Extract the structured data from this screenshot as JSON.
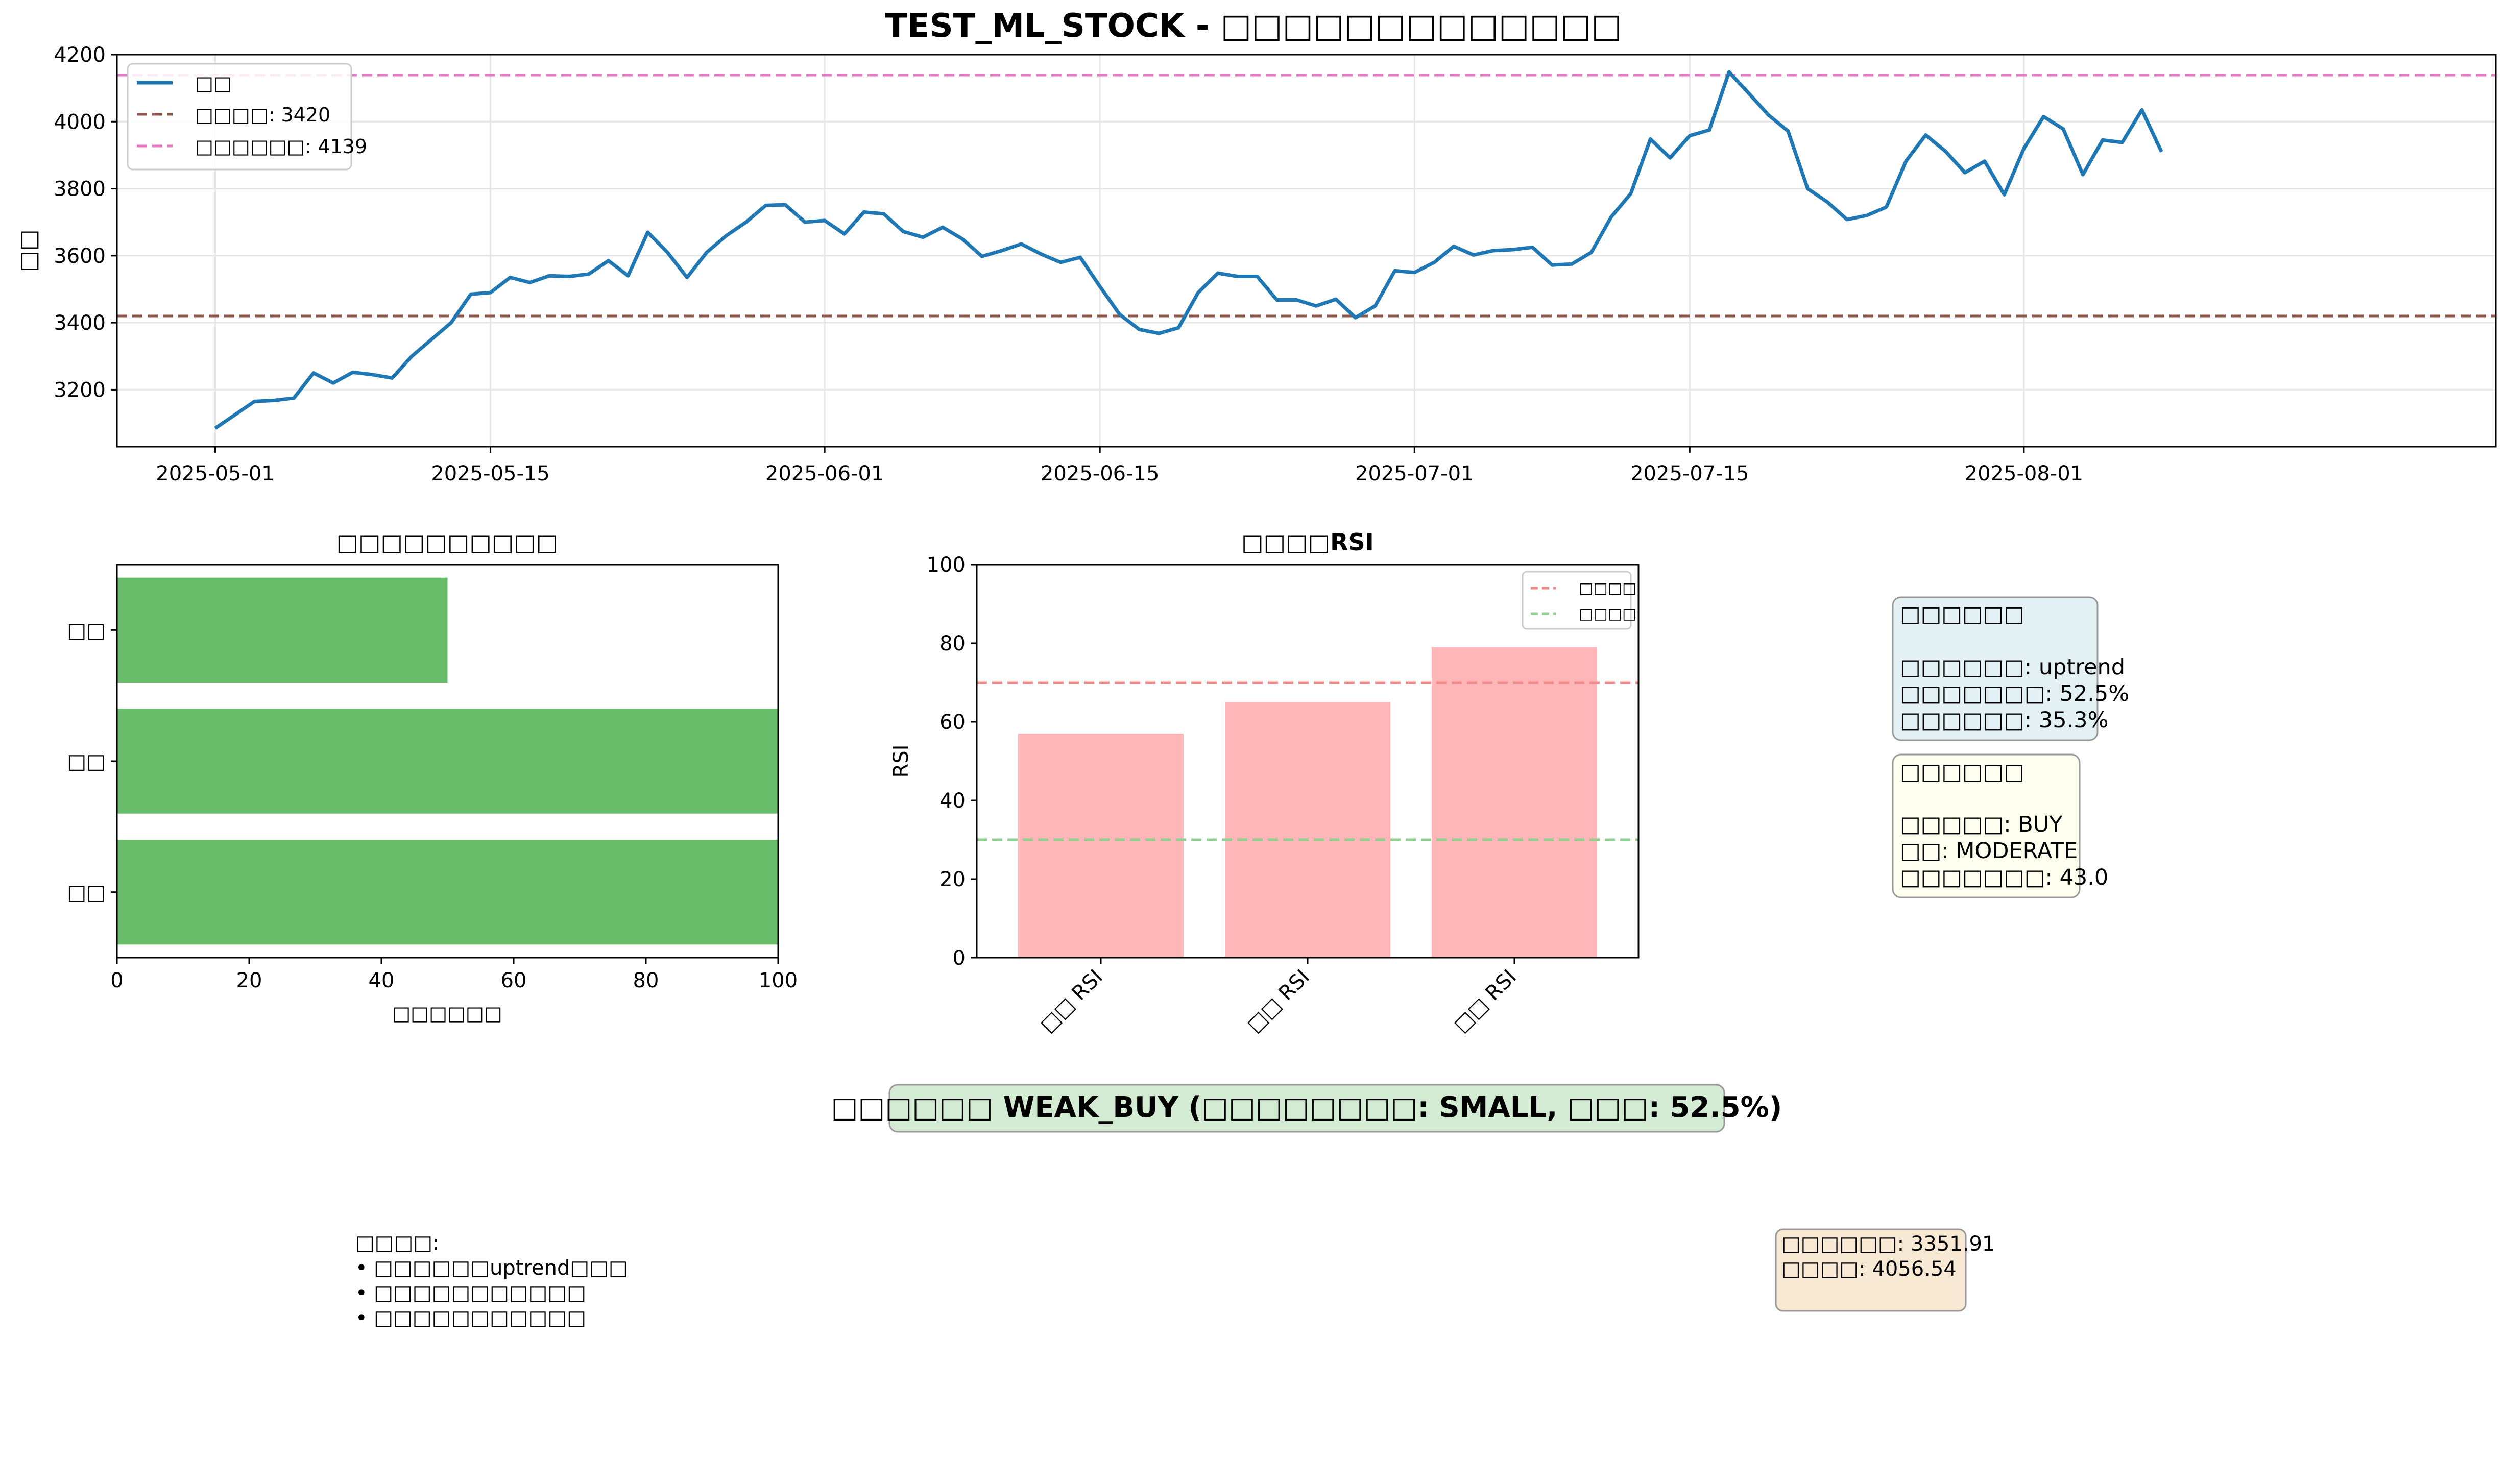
{
  "title": "TEST_ML_STOCK - □□□□□□□□□□□□□",
  "chart_data": [
    {
      "type": "line",
      "ylabel": "□□",
      "ylim": [
        3030,
        4200
      ],
      "yticks": [
        3200,
        3400,
        3600,
        3800,
        4000,
        4200
      ],
      "xticks": [
        "2025-05-01",
        "2025-05-15",
        "2025-06-01",
        "2025-06-15",
        "2025-07-01",
        "2025-07-15",
        "2025-08-01"
      ],
      "grid": true,
      "legend_position": "top-left",
      "series": [
        {
          "name": "□□",
          "color": "#1f77b4",
          "x": [
            "2025-05-01",
            "2025-05-02",
            "2025-05-03",
            "2025-05-04",
            "2025-05-05",
            "2025-05-06",
            "2025-05-07",
            "2025-05-08",
            "2025-05-09",
            "2025-05-10",
            "2025-05-11",
            "2025-05-12",
            "2025-05-13",
            "2025-05-14",
            "2025-05-15",
            "2025-05-16",
            "2025-05-17",
            "2025-05-18",
            "2025-05-19",
            "2025-05-20",
            "2025-05-21",
            "2025-05-22",
            "2025-05-23",
            "2025-05-24",
            "2025-05-25",
            "2025-05-26",
            "2025-05-27",
            "2025-05-28",
            "2025-05-29",
            "2025-05-30",
            "2025-05-31",
            "2025-06-01",
            "2025-06-02",
            "2025-06-03",
            "2025-06-04",
            "2025-06-05",
            "2025-06-06",
            "2025-06-07",
            "2025-06-08",
            "2025-06-09",
            "2025-06-10",
            "2025-06-11",
            "2025-06-12",
            "2025-06-13",
            "2025-06-14",
            "2025-06-15",
            "2025-06-16",
            "2025-06-17",
            "2025-06-18",
            "2025-06-19",
            "2025-06-20",
            "2025-06-21",
            "2025-06-22",
            "2025-06-23",
            "2025-06-24",
            "2025-06-25",
            "2025-06-26",
            "2025-06-27",
            "2025-06-28",
            "2025-06-29",
            "2025-06-30",
            "2025-07-01",
            "2025-07-02",
            "2025-07-03",
            "2025-07-04",
            "2025-07-05",
            "2025-07-06",
            "2025-07-07",
            "2025-07-08",
            "2025-07-09",
            "2025-07-10",
            "2025-07-11",
            "2025-07-12",
            "2025-07-13",
            "2025-07-14",
            "2025-07-15",
            "2025-07-16",
            "2025-07-17",
            "2025-07-18",
            "2025-07-19",
            "2025-07-20",
            "2025-07-21",
            "2025-07-22",
            "2025-07-23",
            "2025-07-24",
            "2025-07-25",
            "2025-07-26",
            "2025-07-27",
            "2025-07-28",
            "2025-07-29",
            "2025-07-30",
            "2025-07-31",
            "2025-08-01",
            "2025-08-02",
            "2025-08-03",
            "2025-08-04",
            "2025-08-05",
            "2025-08-06",
            "2025-08-07",
            "2025-08-08"
          ],
          "y": [
            3085,
            3125,
            3165,
            3168,
            3175,
            3250,
            3220,
            3252,
            3245,
            3235,
            3300,
            3350,
            3400,
            3485,
            3490,
            3535,
            3520,
            3540,
            3538,
            3545,
            3585,
            3540,
            3670,
            3610,
            3535,
            3610,
            3660,
            3700,
            3750,
            3752,
            3700,
            3705,
            3665,
            3730,
            3725,
            3672,
            3655,
            3685,
            3650,
            3598,
            3615,
            3635,
            3605,
            3580,
            3595,
            3508,
            3425,
            3380,
            3368,
            3385,
            3490,
            3548,
            3538,
            3538,
            3468,
            3468,
            3450,
            3470,
            3415,
            3450,
            3555,
            3550,
            3580,
            3628,
            3602,
            3615,
            3618,
            3625,
            3572,
            3575,
            3610,
            3715,
            3785,
            3948,
            3892,
            3958,
            3975,
            4148,
            4085,
            4020,
            3972,
            3800,
            3760,
            3708,
            3720,
            3745,
            3882,
            3960,
            3912,
            3848,
            3882,
            3782,
            3920,
            4015,
            3978,
            3842,
            3945,
            3938,
            4035,
            3910
          ]
        }
      ],
      "hlines": [
        {
          "label": "□□□□: 3420",
          "value": 3420,
          "color": "#8c564b"
        },
        {
          "label": "□□□□□□: 4139",
          "value": 4139,
          "color": "#e377c2"
        }
      ]
    },
    {
      "type": "bar",
      "orientation": "horizontal",
      "title": "□□□□□□□□□□",
      "xlabel": "□□□□□□",
      "xlim": [
        0,
        100
      ],
      "xticks": [
        0,
        20,
        40,
        60,
        80,
        100
      ],
      "categories": [
        "□□",
        "□□",
        "□□"
      ],
      "values": [
        50,
        100,
        100
      ],
      "color": "#6abd6a"
    },
    {
      "type": "bar",
      "title": "□□□□RSI",
      "ylabel": "RSI",
      "ylim": [
        0,
        100
      ],
      "yticks": [
        0,
        20,
        40,
        60,
        80,
        100
      ],
      "categories": [
        "□□ RSI",
        "□□ RSI",
        "□□ RSI"
      ],
      "values": [
        57,
        65,
        79
      ],
      "color": "#ffb6b9",
      "hlines": [
        {
          "label": "□□□□",
          "value": 70,
          "color": "#ef8a8a"
        },
        {
          "label": "□□□□",
          "value": 30,
          "color": "#8fcf8f"
        }
      ],
      "legend_position": "top-right"
    }
  ],
  "boxes": {
    "analysis": {
      "title": "□□□□□□",
      "lines": [
        "□□□□□□: uptrend",
        "□□□□□□□: 52.5%",
        "□□□□□□: 35.3%"
      ]
    },
    "advice": {
      "title": "□□□□□□",
      "lines": [
        "□□□□□: BUY",
        "□□: MODERATE",
        "□□□□□□□: 43.0"
      ]
    },
    "signal": "□□□□□□ WEAK_BUY (□□□□□□□□: SMALL, □□□: 52.5%)",
    "notes": {
      "title": "□□□□:",
      "lines": [
        "• □□□□□□uptrend□□□",
        "• □□□□□□□□□□□",
        "• □□□□□□□□□□□"
      ]
    },
    "levels": {
      "lines": [
        "□□□□□□: 3351.91",
        "□□□□: 4056.54"
      ]
    }
  },
  "colors": {
    "analysis_bg": "#e3f1f4",
    "advice_bg": "#fffff0",
    "signal_bg": "#d3ebd3",
    "levels_bg": "#f7e9d4",
    "box_border": "#999999"
  }
}
